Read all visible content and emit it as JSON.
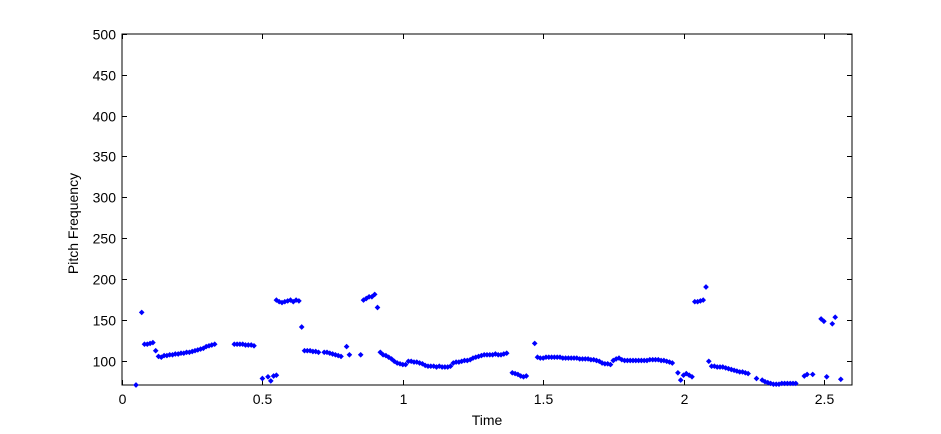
{
  "chart_data": {
    "type": "scatter",
    "title": "",
    "xlabel": "Time",
    "ylabel": "Pitch Frequency",
    "xlim": [
      0,
      2.6
    ],
    "ylim": [
      70,
      500
    ],
    "xticks": [
      0,
      0.5,
      1,
      1.5,
      2,
      2.5
    ],
    "xtick_labels": [
      "0",
      "0.5",
      "1",
      "1.5",
      "2",
      "2.5"
    ],
    "yticks": [
      100,
      150,
      200,
      250,
      300,
      350,
      400,
      450,
      500
    ],
    "ytick_labels": [
      "100",
      "150",
      "200",
      "250",
      "300",
      "350",
      "400",
      "450",
      "500"
    ],
    "grid": false,
    "marker": "dot",
    "colors": {
      "points": "#0000ff",
      "axes": "#000000",
      "background": "#ffffff"
    },
    "series": [
      {
        "points": [
          [
            0.05,
            70
          ],
          [
            0.07,
            159
          ],
          [
            0.08,
            120
          ],
          [
            0.09,
            120
          ],
          [
            0.1,
            121
          ],
          [
            0.11,
            122
          ],
          [
            0.12,
            112
          ],
          [
            0.13,
            105
          ],
          [
            0.14,
            104
          ],
          [
            0.15,
            106
          ],
          [
            0.16,
            106
          ],
          [
            0.17,
            107
          ],
          [
            0.18,
            107
          ],
          [
            0.19,
            108
          ],
          [
            0.2,
            108
          ],
          [
            0.21,
            109
          ],
          [
            0.22,
            109
          ],
          [
            0.23,
            110
          ],
          [
            0.24,
            110
          ],
          [
            0.25,
            111
          ],
          [
            0.26,
            112
          ],
          [
            0.27,
            113
          ],
          [
            0.28,
            114
          ],
          [
            0.29,
            115
          ],
          [
            0.3,
            117
          ],
          [
            0.31,
            118
          ],
          [
            0.32,
            119
          ],
          [
            0.33,
            120
          ],
          [
            0.4,
            120
          ],
          [
            0.41,
            120
          ],
          [
            0.42,
            120
          ],
          [
            0.43,
            120
          ],
          [
            0.44,
            119
          ],
          [
            0.45,
            119
          ],
          [
            0.46,
            119
          ],
          [
            0.47,
            118
          ],
          [
            0.5,
            78
          ],
          [
            0.52,
            80
          ],
          [
            0.53,
            75
          ],
          [
            0.54,
            81
          ],
          [
            0.55,
            82
          ],
          [
            0.55,
            174
          ],
          [
            0.56,
            172
          ],
          [
            0.57,
            171
          ],
          [
            0.58,
            172
          ],
          [
            0.59,
            173
          ],
          [
            0.6,
            174
          ],
          [
            0.61,
            172
          ],
          [
            0.62,
            174
          ],
          [
            0.63,
            173
          ],
          [
            0.64,
            141
          ],
          [
            0.65,
            112
          ],
          [
            0.66,
            112
          ],
          [
            0.67,
            112
          ],
          [
            0.68,
            111
          ],
          [
            0.69,
            111
          ],
          [
            0.7,
            110
          ],
          [
            0.72,
            110
          ],
          [
            0.73,
            110
          ],
          [
            0.74,
            109
          ],
          [
            0.75,
            108
          ],
          [
            0.76,
            107
          ],
          [
            0.77,
            106
          ],
          [
            0.78,
            105
          ],
          [
            0.8,
            117
          ],
          [
            0.81,
            107
          ],
          [
            0.85,
            107
          ],
          [
            0.86,
            174
          ],
          [
            0.87,
            176
          ],
          [
            0.88,
            178
          ],
          [
            0.89,
            178
          ],
          [
            0.9,
            181
          ],
          [
            0.91,
            165
          ],
          [
            0.92,
            110
          ],
          [
            0.93,
            107
          ],
          [
            0.94,
            106
          ],
          [
            0.95,
            104
          ],
          [
            0.96,
            102
          ],
          [
            0.97,
            99
          ],
          [
            0.98,
            97
          ],
          [
            0.99,
            96
          ],
          [
            1.0,
            95
          ],
          [
            1.01,
            95
          ],
          [
            1.02,
            99
          ],
          [
            1.03,
            99
          ],
          [
            1.04,
            98
          ],
          [
            1.05,
            98
          ],
          [
            1.06,
            97
          ],
          [
            1.07,
            96
          ],
          [
            1.08,
            94
          ],
          [
            1.09,
            93
          ],
          [
            1.1,
            93
          ],
          [
            1.11,
            93
          ],
          [
            1.12,
            92
          ],
          [
            1.13,
            93
          ],
          [
            1.14,
            92
          ],
          [
            1.15,
            92
          ],
          [
            1.16,
            92
          ],
          [
            1.17,
            93
          ],
          [
            1.18,
            97
          ],
          [
            1.19,
            98
          ],
          [
            1.2,
            98
          ],
          [
            1.21,
            99
          ],
          [
            1.22,
            100
          ],
          [
            1.23,
            100
          ],
          [
            1.24,
            101
          ],
          [
            1.25,
            103
          ],
          [
            1.26,
            104
          ],
          [
            1.27,
            105
          ],
          [
            1.28,
            106
          ],
          [
            1.29,
            107
          ],
          [
            1.3,
            107
          ],
          [
            1.31,
            107
          ],
          [
            1.32,
            107
          ],
          [
            1.33,
            108
          ],
          [
            1.34,
            107
          ],
          [
            1.35,
            107
          ],
          [
            1.36,
            108
          ],
          [
            1.37,
            109
          ],
          [
            1.39,
            85
          ],
          [
            1.4,
            84
          ],
          [
            1.41,
            83
          ],
          [
            1.42,
            81
          ],
          [
            1.43,
            80
          ],
          [
            1.44,
            81
          ],
          [
            1.47,
            121
          ],
          [
            1.48,
            104
          ],
          [
            1.49,
            103
          ],
          [
            1.5,
            103
          ],
          [
            1.51,
            104
          ],
          [
            1.52,
            104
          ],
          [
            1.53,
            104
          ],
          [
            1.54,
            104
          ],
          [
            1.55,
            104
          ],
          [
            1.56,
            104
          ],
          [
            1.57,
            103
          ],
          [
            1.58,
            103
          ],
          [
            1.59,
            103
          ],
          [
            1.6,
            103
          ],
          [
            1.61,
            103
          ],
          [
            1.62,
            103
          ],
          [
            1.63,
            102
          ],
          [
            1.64,
            102
          ],
          [
            1.65,
            102
          ],
          [
            1.66,
            102
          ],
          [
            1.67,
            101
          ],
          [
            1.68,
            101
          ],
          [
            1.69,
            100
          ],
          [
            1.7,
            99
          ],
          [
            1.71,
            97
          ],
          [
            1.72,
            96
          ],
          [
            1.73,
            96
          ],
          [
            1.74,
            95
          ],
          [
            1.75,
            100
          ],
          [
            1.76,
            102
          ],
          [
            1.77,
            103
          ],
          [
            1.78,
            101
          ],
          [
            1.79,
            100
          ],
          [
            1.8,
            100
          ],
          [
            1.81,
            100
          ],
          [
            1.82,
            100
          ],
          [
            1.83,
            100
          ],
          [
            1.84,
            100
          ],
          [
            1.85,
            100
          ],
          [
            1.86,
            100
          ],
          [
            1.87,
            100
          ],
          [
            1.88,
            101
          ],
          [
            1.89,
            101
          ],
          [
            1.9,
            101
          ],
          [
            1.91,
            101
          ],
          [
            1.92,
            100
          ],
          [
            1.93,
            100
          ],
          [
            1.94,
            99
          ],
          [
            1.95,
            98
          ],
          [
            1.96,
            97
          ],
          [
            1.98,
            85
          ],
          [
            1.99,
            76
          ],
          [
            2.0,
            82
          ],
          [
            2.01,
            84
          ],
          [
            2.02,
            82
          ],
          [
            2.03,
            80
          ],
          [
            2.04,
            172
          ],
          [
            2.05,
            172
          ],
          [
            2.06,
            173
          ],
          [
            2.07,
            174
          ],
          [
            2.08,
            190
          ],
          [
            2.09,
            99
          ],
          [
            2.1,
            93
          ],
          [
            2.11,
            93
          ],
          [
            2.12,
            92
          ],
          [
            2.13,
            92
          ],
          [
            2.14,
            92
          ],
          [
            2.15,
            91
          ],
          [
            2.16,
            90
          ],
          [
            2.17,
            89
          ],
          [
            2.18,
            88
          ],
          [
            2.19,
            87
          ],
          [
            2.2,
            86
          ],
          [
            2.21,
            86
          ],
          [
            2.22,
            85
          ],
          [
            2.23,
            84
          ],
          [
            2.26,
            78
          ],
          [
            2.28,
            76
          ],
          [
            2.29,
            74
          ],
          [
            2.3,
            73
          ],
          [
            2.31,
            72
          ],
          [
            2.32,
            71
          ],
          [
            2.33,
            71
          ],
          [
            2.34,
            71
          ],
          [
            2.35,
            72
          ],
          [
            2.36,
            72
          ],
          [
            2.37,
            72
          ],
          [
            2.38,
            72
          ],
          [
            2.39,
            72
          ],
          [
            2.4,
            72
          ],
          [
            2.43,
            81
          ],
          [
            2.44,
            83
          ],
          [
            2.46,
            83
          ],
          [
            2.49,
            151
          ],
          [
            2.5,
            148
          ],
          [
            2.51,
            80
          ],
          [
            2.53,
            145
          ],
          [
            2.54,
            153
          ],
          [
            2.56,
            77
          ]
        ]
      }
    ]
  }
}
